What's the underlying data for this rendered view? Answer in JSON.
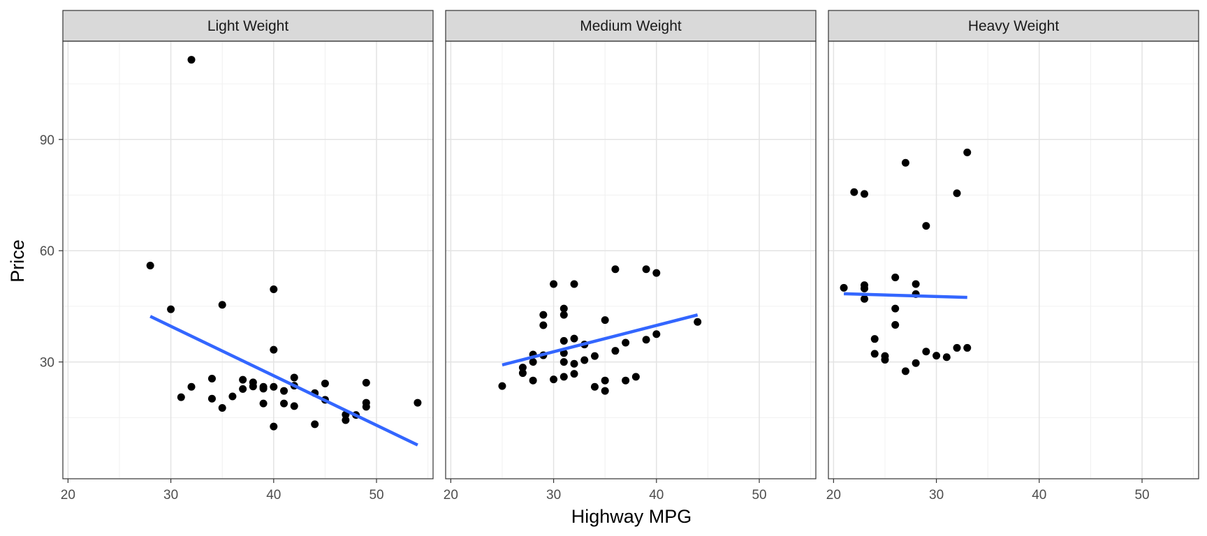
{
  "chart_data": {
    "type": "scatter",
    "xlabel": "Highway MPG",
    "ylabel": "Price",
    "xlim": [
      19.5,
      55.5
    ],
    "ylim": [
      -1.5,
      116.5
    ],
    "x_ticks": [
      20,
      30,
      40,
      50
    ],
    "y_ticks": [
      30,
      60,
      90
    ],
    "grid": true,
    "point_color": "#000000",
    "trend_color": "#3366FF",
    "panels": [
      {
        "label": "Light Weight",
        "points": [
          [
            28,
            56
          ],
          [
            30,
            44.2
          ],
          [
            31,
            20.5
          ],
          [
            32,
            23.3
          ],
          [
            32,
            111.5
          ],
          [
            34,
            25.5
          ],
          [
            34,
            20.1
          ],
          [
            35,
            45.4
          ],
          [
            35,
            17.6
          ],
          [
            36,
            20.7
          ],
          [
            37,
            22.7
          ],
          [
            37,
            25.2
          ],
          [
            38,
            24.5
          ],
          [
            38,
            23.4
          ],
          [
            39,
            22.8
          ],
          [
            39,
            23.3
          ],
          [
            39,
            18.8
          ],
          [
            40,
            23.3
          ],
          [
            40,
            49.6
          ],
          [
            40,
            33.3
          ],
          [
            40,
            12.6
          ],
          [
            41,
            22.2
          ],
          [
            41,
            18.8
          ],
          [
            42,
            25.8
          ],
          [
            42,
            23.6
          ],
          [
            42,
            18.1
          ],
          [
            44,
            21.6
          ],
          [
            44,
            13.2
          ],
          [
            45,
            24.2
          ],
          [
            45,
            19.8
          ],
          [
            47,
            15.8
          ],
          [
            47,
            14.3
          ],
          [
            48,
            15.7
          ],
          [
            49,
            24.4
          ],
          [
            49,
            19.0
          ],
          [
            49,
            17.9
          ],
          [
            54,
            19.0
          ]
        ],
        "trend": [
          [
            28,
            42.3
          ],
          [
            54,
            7.6
          ]
        ]
      },
      {
        "label": "Medium Weight",
        "points": [
          [
            25,
            23.5
          ],
          [
            27,
            28.5
          ],
          [
            27,
            27.0
          ],
          [
            28,
            32.0
          ],
          [
            28,
            30.0
          ],
          [
            28,
            25.0
          ],
          [
            29,
            42.7
          ],
          [
            29,
            39.9
          ],
          [
            29,
            31.8
          ],
          [
            30,
            51.0
          ],
          [
            30,
            25.3
          ],
          [
            31,
            44.4
          ],
          [
            31,
            42.7
          ],
          [
            31,
            35.7
          ],
          [
            31,
            32.4
          ],
          [
            31,
            30.0
          ],
          [
            31,
            26.0
          ],
          [
            32,
            51.0
          ],
          [
            32,
            36.3
          ],
          [
            32,
            29.5
          ],
          [
            32,
            26.8
          ],
          [
            33,
            34.7
          ],
          [
            33,
            30.5
          ],
          [
            34,
            31.6
          ],
          [
            34,
            23.3
          ],
          [
            35,
            41.3
          ],
          [
            35,
            25.0
          ],
          [
            35,
            22.2
          ],
          [
            36,
            55.0
          ],
          [
            36,
            33.0
          ],
          [
            37,
            35.2
          ],
          [
            37,
            25.0
          ],
          [
            38,
            26.0
          ],
          [
            39,
            55.0
          ],
          [
            39,
            36.0
          ],
          [
            40,
            54.0
          ],
          [
            40,
            37.5
          ],
          [
            44,
            40.8
          ]
        ],
        "trend": [
          [
            25,
            29.2
          ],
          [
            44,
            42.7
          ]
        ]
      },
      {
        "label": "Heavy Weight",
        "points": [
          [
            21,
            50.0
          ],
          [
            22,
            75.8
          ],
          [
            23,
            75.3
          ],
          [
            23,
            50.7
          ],
          [
            23,
            49.8
          ],
          [
            23,
            47.0
          ],
          [
            24,
            36.2
          ],
          [
            24,
            32.2
          ],
          [
            25,
            31.6
          ],
          [
            25,
            30.6
          ],
          [
            26,
            52.8
          ],
          [
            26,
            44.4
          ],
          [
            26,
            40.0
          ],
          [
            27,
            83.7
          ],
          [
            27,
            27.5
          ],
          [
            28,
            51.0
          ],
          [
            28,
            48.3
          ],
          [
            28,
            29.7
          ],
          [
            29,
            66.7
          ],
          [
            29,
            32.8
          ],
          [
            30,
            31.7
          ],
          [
            31,
            31.3
          ],
          [
            32,
            75.5
          ],
          [
            32,
            33.8
          ],
          [
            33,
            86.5
          ],
          [
            33,
            33.8
          ]
        ],
        "trend": [
          [
            21,
            48.4
          ],
          [
            33,
            47.4
          ]
        ]
      }
    ]
  }
}
